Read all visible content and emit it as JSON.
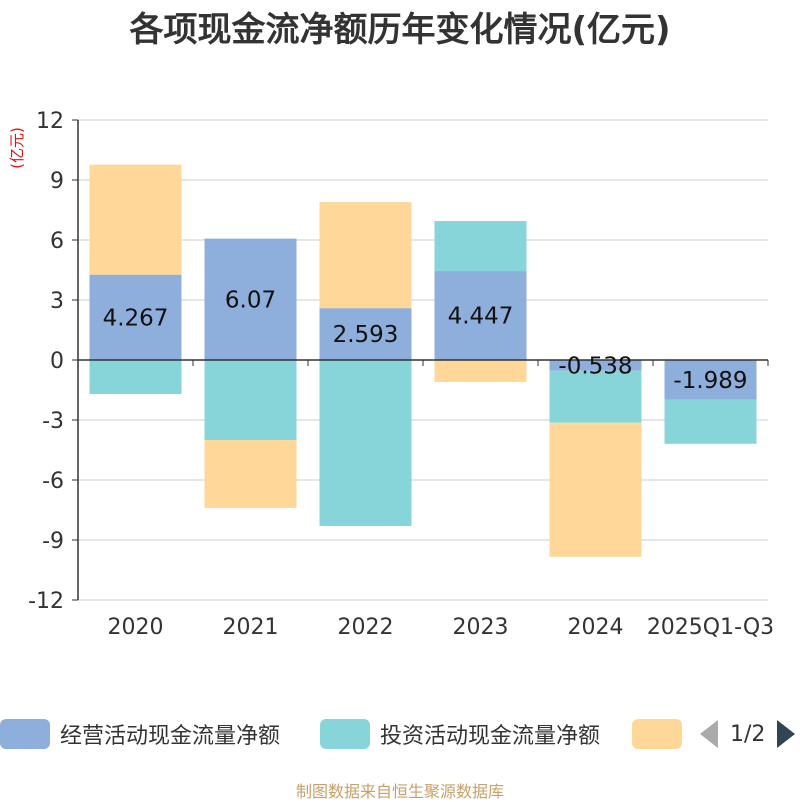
{
  "title": "各项现金流净额历年变化情况(亿元)",
  "source": "制图数据来自恒生聚源数据库",
  "colors": {
    "operating": "#8eaedc",
    "investing": "#87d5d8",
    "financing": "#ffd799",
    "grid": "#cccccc",
    "axis": "#333333",
    "unit": "#e01010"
  },
  "legend": {
    "items": [
      {
        "label": "经营活动现金流量净额",
        "color": "#8eaedc"
      },
      {
        "label": "投资活动现金流量净额",
        "color": "#87d5d8"
      },
      {
        "label": "",
        "color": "#ffd799"
      }
    ],
    "page": "1/2"
  },
  "chart_data": {
    "type": "bar",
    "stacked": true,
    "title": "各项现金流净额历年变化情况(亿元)",
    "unit_label": "(亿元)",
    "categories": [
      "2020",
      "2021",
      "2022",
      "2023",
      "2024",
      "2025Q1-Q3"
    ],
    "ylim": [
      -12,
      12
    ],
    "yticks": [
      12,
      9,
      6,
      3,
      0,
      -3,
      -6,
      -9,
      -12
    ],
    "grid": true,
    "legend_position": "bottom",
    "series": [
      {
        "name": "经营活动现金流量净额",
        "values": [
          4.267,
          6.07,
          2.593,
          4.447,
          -0.538,
          -1.989
        ],
        "labels": [
          "4.267",
          "6.07",
          "2.593",
          "4.447",
          "-0.538",
          "-1.989"
        ]
      },
      {
        "name": "投资活动现金流量净额",
        "values": [
          -1.7,
          -4.0,
          -8.3,
          2.5,
          -2.6,
          -2.2
        ]
      },
      {
        "values": [
          5.5,
          -3.4,
          5.3,
          -1.1,
          -6.7,
          0
        ]
      }
    ]
  }
}
